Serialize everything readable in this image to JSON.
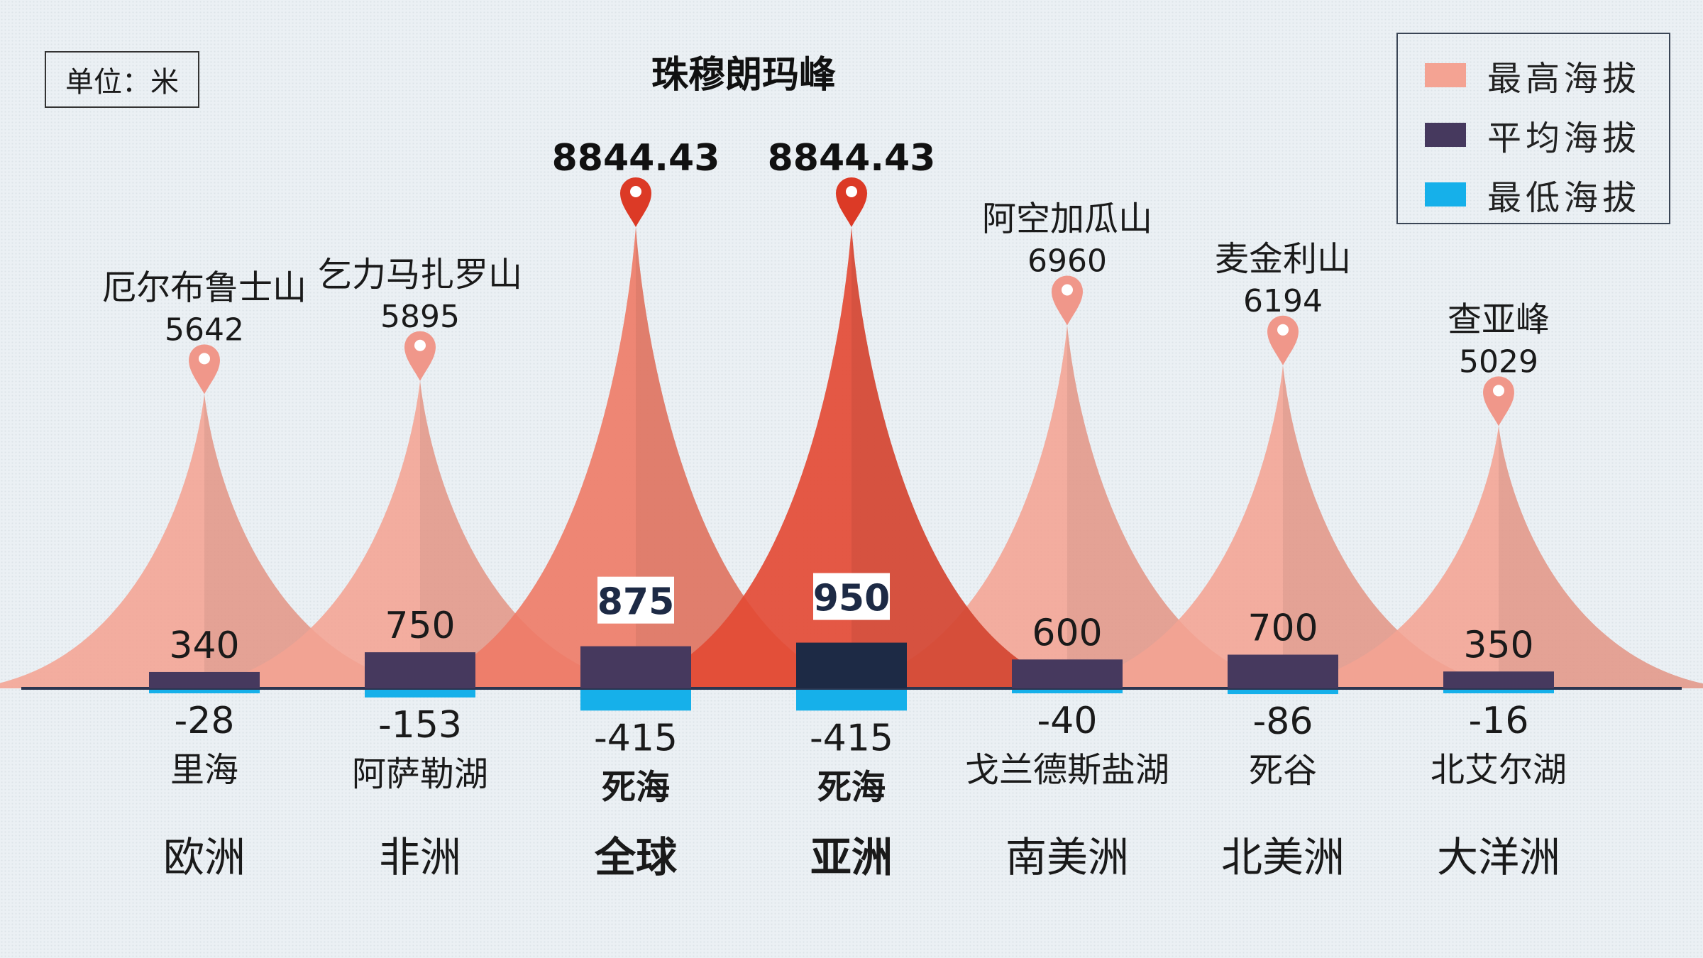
{
  "unit_label": "单位：米",
  "legend": [
    {
      "label": "最高海拔",
      "color": "#f4a393"
    },
    {
      "label": "平均海拔",
      "color": "#46395e"
    },
    {
      "label": "最低海拔",
      "color": "#16b0ea"
    }
  ],
  "chart_data": {
    "type": "area",
    "title": "",
    "highlight_caption": "珠穆朗玛峰",
    "series_names": [
      "最高海拔",
      "平均海拔",
      "最低海拔"
    ],
    "categories": [
      "欧洲",
      "非洲",
      "全球",
      "亚洲",
      "南美洲",
      "北美洲",
      "大洋洲"
    ],
    "highlight": [
      false,
      false,
      true,
      true,
      false,
      false,
      false
    ],
    "highest": [
      5642,
      5895,
      8844.43,
      8844.43,
      6960,
      6194,
      5029
    ],
    "highest_labels": [
      "5642",
      "5895",
      "8844.43",
      "8844.43",
      "6960",
      "6194",
      "5029"
    ],
    "highest_names": [
      "厄尔布鲁士山",
      "乞力马扎罗山",
      "",
      "",
      "阿空加瓜山",
      "麦金利山",
      "查亚峰"
    ],
    "average": [
      340,
      750,
      875,
      950,
      600,
      700,
      350
    ],
    "lowest": [
      -28,
      -153,
      -415,
      -415,
      -40,
      -86,
      -16
    ],
    "lowest_names": [
      "里海",
      "阿萨勒湖",
      "死海",
      "死海",
      "戈兰德斯盐湖",
      "死谷",
      "北艾尔湖"
    ],
    "colors": {
      "peak": "#f4a393",
      "peak_global": "#ee7a66",
      "peak_asia": "#e34b35",
      "pin": "#f0978a",
      "pin_highlight": "#dc3a26",
      "avg": "#46395e",
      "avg_asia": "#1d2a45",
      "low": "#16b0ea",
      "baseline": "#2b3550"
    }
  }
}
